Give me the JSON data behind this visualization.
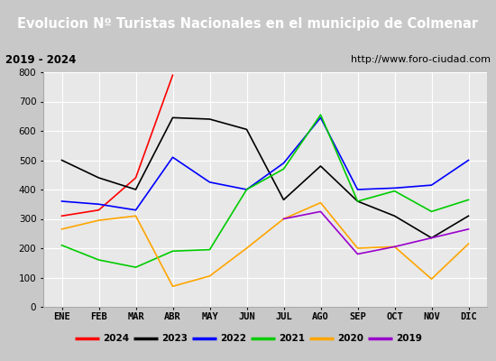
{
  "title": "Evolucion Nº Turistas Nacionales en el municipio de Colmenar",
  "subtitle_left": "2019 - 2024",
  "subtitle_right": "http://www.foro-ciudad.com",
  "months": [
    "ENE",
    "FEB",
    "MAR",
    "ABR",
    "MAY",
    "JUN",
    "JUL",
    "AGO",
    "SEP",
    "OCT",
    "NOV",
    "DIC"
  ],
  "series": {
    "2024": {
      "color": "#ff0000",
      "data": [
        310,
        330,
        440,
        790,
        null,
        null,
        null,
        null,
        null,
        null,
        null,
        null
      ]
    },
    "2023": {
      "color": "#000000",
      "data": [
        500,
        440,
        400,
        645,
        640,
        605,
        365,
        480,
        360,
        310,
        235,
        310
      ]
    },
    "2022": {
      "color": "#0000ff",
      "data": [
        360,
        350,
        330,
        510,
        425,
        400,
        490,
        645,
        400,
        405,
        415,
        500
      ]
    },
    "2021": {
      "color": "#00cc00",
      "data": [
        210,
        160,
        135,
        190,
        195,
        400,
        470,
        655,
        360,
        395,
        325,
        365
      ]
    },
    "2020": {
      "color": "#ffa500",
      "data": [
        265,
        295,
        310,
        70,
        105,
        200,
        300,
        355,
        200,
        205,
        95,
        215
      ]
    },
    "2019": {
      "color": "#9900cc",
      "data": [
        null,
        null,
        null,
        null,
        null,
        null,
        300,
        325,
        180,
        205,
        235,
        265
      ]
    }
  },
  "ylim": [
    0,
    800
  ],
  "yticks": [
    0,
    100,
    200,
    300,
    400,
    500,
    600,
    700,
    800
  ],
  "title_bg": "#5b9bd5",
  "title_color": "#ffffff",
  "header_bg": "#ffffff",
  "plot_bg": "#e8e8e8",
  "fig_bg": "#c8c8c8",
  "grid_color": "#ffffff",
  "border_color": "#5b9bd5"
}
